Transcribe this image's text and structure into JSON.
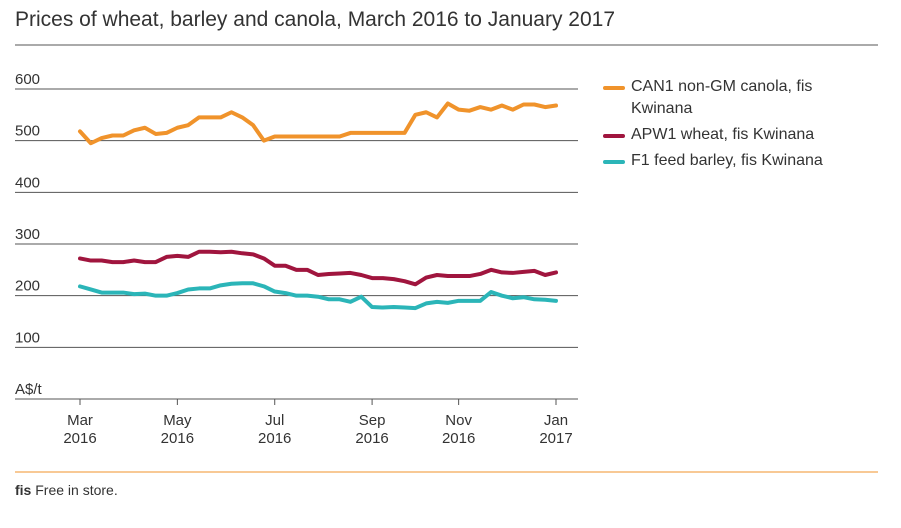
{
  "chart_data": {
    "type": "line",
    "title": "Prices of wheat, barley and canola, March 2016 to January 2017",
    "categories": [
      "Mar 2016",
      null,
      null,
      null,
      null,
      null,
      null,
      null,
      null,
      "May 2016",
      null,
      null,
      null,
      null,
      null,
      null,
      null,
      null,
      "Jul 2016",
      null,
      null,
      null,
      null,
      null,
      null,
      null,
      null,
      "Sep 2016",
      null,
      null,
      null,
      null,
      null,
      null,
      null,
      "Nov 2016",
      null,
      null,
      null,
      null,
      null,
      null,
      null,
      null,
      "Jan 2017"
    ],
    "series": [
      {
        "name": "CAN1 non-GM canola, fis Kwinana",
        "color": "#f0932b",
        "values": [
          518,
          495,
          505,
          510,
          510,
          520,
          525,
          513,
          515,
          525,
          530,
          545,
          545,
          545,
          555,
          545,
          530,
          500,
          508,
          508,
          508,
          508,
          508,
          508,
          508,
          515,
          515,
          515,
          515,
          515,
          515,
          550,
          555,
          545,
          572,
          560,
          558,
          565,
          560,
          568,
          560,
          570,
          570,
          565,
          568
        ]
      },
      {
        "name": "APW1 wheat, fis Kwinana",
        "color": "#a0153e",
        "values": [
          272,
          268,
          268,
          265,
          265,
          268,
          265,
          265,
          275,
          277,
          275,
          285,
          285,
          284,
          285,
          282,
          280,
          272,
          258,
          258,
          250,
          250,
          240,
          242,
          243,
          244,
          240,
          234,
          234,
          232,
          228,
          222,
          235,
          240,
          238,
          238,
          238,
          242,
          250,
          245,
          244,
          246,
          248,
          240,
          245
        ]
      },
      {
        "name": "F1 feed barley, fis Kwinana",
        "color": "#2bb5b8",
        "values": [
          218,
          212,
          206,
          206,
          206,
          203,
          204,
          200,
          200,
          205,
          212,
          214,
          214,
          220,
          223,
          224,
          224,
          218,
          208,
          205,
          200,
          200,
          198,
          193,
          193,
          188,
          198,
          178,
          177,
          178,
          177,
          176,
          185,
          188,
          186,
          190,
          190,
          190,
          207,
          200,
          195,
          197,
          193,
          192,
          190
        ]
      }
    ],
    "ylim": [
      0,
      600
    ],
    "yticks": [
      {
        "value": 0,
        "label": "A$/t"
      },
      100,
      200,
      300,
      400,
      500,
      600
    ],
    "grid": true,
    "legend": "right",
    "footnote": {
      "abbr": "fis",
      "text": "Free in store."
    }
  }
}
